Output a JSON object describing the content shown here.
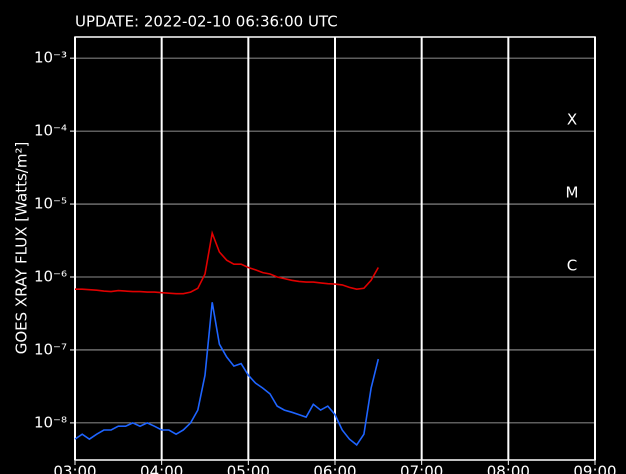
{
  "chart_data": {
    "type": "line",
    "title": "UPDATE: 2022-02-10 06:36:00 UTC",
    "y_label": "GOES XRAY FLUX [Watts/m²]",
    "yscale": "log",
    "grid": true,
    "annotations": [
      "X",
      "M",
      "C"
    ],
    "xlim": [
      "03:00",
      "09:00"
    ],
    "xticks": [
      "03:00",
      "04:00",
      "05:00",
      "06:00",
      "07:00",
      "08:00",
      "09:00"
    ],
    "ylim": [
      3.1e-09,
      0.00195
    ],
    "yticks": [
      {
        "value": 0.001,
        "label": "10⁻³"
      },
      {
        "value": 0.0001,
        "label": "10⁻⁴"
      },
      {
        "value": 1e-05,
        "label": "10⁻⁵"
      },
      {
        "value": 1e-06,
        "label": "10⁻⁶"
      },
      {
        "value": 1e-07,
        "label": "10⁻⁷"
      },
      {
        "value": 1e-08,
        "label": "10⁻⁸"
      }
    ],
    "x": [
      "03:00",
      "03:05",
      "03:10",
      "03:15",
      "03:20",
      "03:25",
      "03:30",
      "03:35",
      "03:40",
      "03:45",
      "03:50",
      "03:55",
      "04:00",
      "04:05",
      "04:10",
      "04:15",
      "04:20",
      "04:25",
      "04:30",
      "04:35",
      "04:40",
      "04:45",
      "04:50",
      "04:55",
      "05:00",
      "05:05",
      "05:10",
      "05:15",
      "05:20",
      "05:25",
      "05:30",
      "05:35",
      "05:40",
      "05:45",
      "05:50",
      "05:55",
      "06:00",
      "06:05",
      "06:10",
      "06:15",
      "06:20",
      "06:25",
      "06:30"
    ],
    "series": [
      {
        "color": "#e00000",
        "values": [
          6.8e-07,
          6.8e-07,
          6.7e-07,
          6.6e-07,
          6.4e-07,
          6.3e-07,
          6.5e-07,
          6.4e-07,
          6.3e-07,
          6.3e-07,
          6.2e-07,
          6.2e-07,
          6.1e-07,
          6e-07,
          5.9e-07,
          5.9e-07,
          6.2e-07,
          7e-07,
          1.1e-06,
          4e-06,
          2.2e-06,
          1.7e-06,
          1.5e-06,
          1.5e-06,
          1.35e-06,
          1.25e-06,
          1.15e-06,
          1.1e-06,
          1e-06,
          9.5e-07,
          9e-07,
          8.7e-07,
          8.5e-07,
          8.5e-07,
          8.3e-07,
          8.1e-07,
          8e-07,
          7.8e-07,
          7.2e-07,
          6.8e-07,
          7e-07,
          9e-07,
          1.35e-06
        ]
      },
      {
        "color": "#1e64ff",
        "values": [
          6e-09,
          7e-09,
          6e-09,
          7e-09,
          8e-09,
          8e-09,
          9e-09,
          9e-09,
          1e-08,
          9e-09,
          1e-08,
          9e-09,
          8e-09,
          8e-09,
          7e-09,
          8e-09,
          1e-08,
          1.5e-08,
          4.5e-08,
          4.5e-07,
          1.2e-07,
          8e-08,
          6e-08,
          6.5e-08,
          4.5e-08,
          3.5e-08,
          3e-08,
          2.5e-08,
          1.7e-08,
          1.5e-08,
          1.4e-08,
          1.3e-08,
          1.2e-08,
          1.8e-08,
          1.5e-08,
          1.7e-08,
          1.3e-08,
          8e-09,
          6e-09,
          5e-09,
          7e-09,
          3e-08,
          7.5e-08
        ]
      }
    ]
  }
}
